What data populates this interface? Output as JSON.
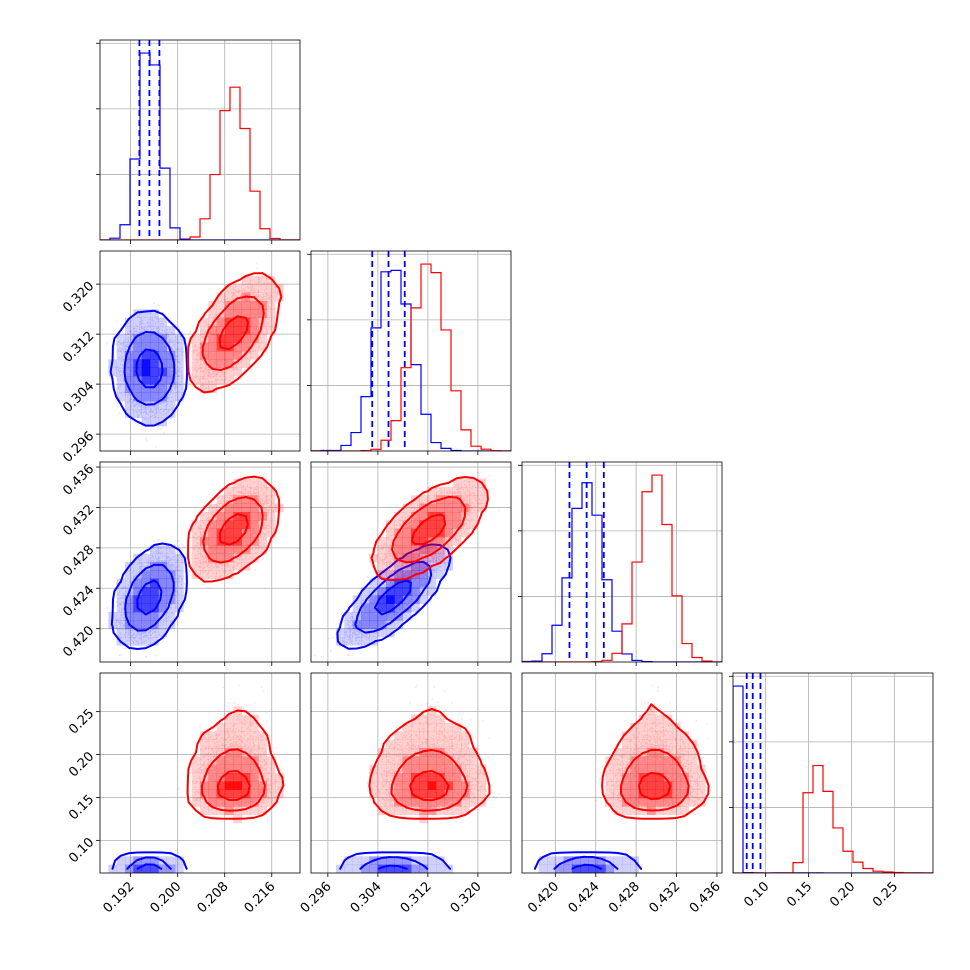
{
  "figure": {
    "background": "#ffffff",
    "panel_names": [
      "p0",
      "p1",
      "p2",
      "p3"
    ]
  },
  "chart_data": {
    "type": "corner",
    "grid": true,
    "title": "",
    "series": [
      {
        "name": "",
        "color": "#0000ff",
        "means": [
          0.1952,
          0.3065,
          0.4231,
          0.085
        ],
        "sigmas": [
          0.0018,
          0.0028,
          0.00155,
          0.0095
        ],
        "skew": [
          0,
          0,
          0,
          0.9
        ],
        "correlations": [
          [
            1,
            0,
            0.5,
            0.05
          ],
          [
            0,
            1,
            0.9,
            0.05
          ],
          [
            0.5,
            0.9,
            1,
            0.05
          ],
          [
            0.05,
            0.05,
            0.05,
            1
          ]
        ],
        "quantile_lines": [
          [
            0.1935,
            0.1952,
            0.1969
          ],
          [
            0.3031,
            0.3057,
            0.3083
          ],
          [
            0.4214,
            0.4231,
            0.4248
          ],
          [
            0.078,
            0.085,
            0.094
          ]
        ]
      },
      {
        "name": "",
        "color": "#ff0000",
        "means": [
          0.2095,
          0.3122,
          0.4298,
          0.165
        ],
        "sigmas": [
          0.0023,
          0.0028,
          0.0015,
          0.016
        ],
        "skew": [
          0,
          0,
          0,
          0.8
        ],
        "correlations": [
          [
            1,
            0.62,
            0.5,
            0.05
          ],
          [
            0.62,
            1,
            0.72,
            0.05
          ],
          [
            0.5,
            0.72,
            1,
            0.05
          ],
          [
            0.05,
            0.05,
            0.05,
            1
          ]
        ],
        "quantile_lines": []
      }
    ],
    "axes": [
      {
        "range": [
          0.1868,
          0.2208
        ],
        "ticks": [
          0.192,
          0.2,
          0.208,
          0.216
        ],
        "tick_labels": [
          "0.192",
          "0.200",
          "0.208",
          "0.216"
        ]
      },
      {
        "range": [
          0.2933,
          0.3253
        ],
        "ticks": [
          0.296,
          0.304,
          0.312,
          0.32
        ],
        "tick_labels": [
          "0.296",
          "0.304",
          "0.312",
          "0.320"
        ]
      },
      {
        "range": [
          0.4167,
          0.4365
        ],
        "ticks": [
          0.42,
          0.424,
          0.428,
          0.432,
          0.436
        ],
        "tick_labels": [
          "0.420",
          "0.424",
          "0.428",
          "0.432",
          "0.436"
        ]
      },
      {
        "range": [
          0.062,
          0.295
        ],
        "ticks": [
          0.1,
          0.15,
          0.2,
          0.25
        ],
        "tick_labels": [
          "0.10",
          "0.15",
          "0.20",
          "0.25"
        ]
      }
    ]
  }
}
